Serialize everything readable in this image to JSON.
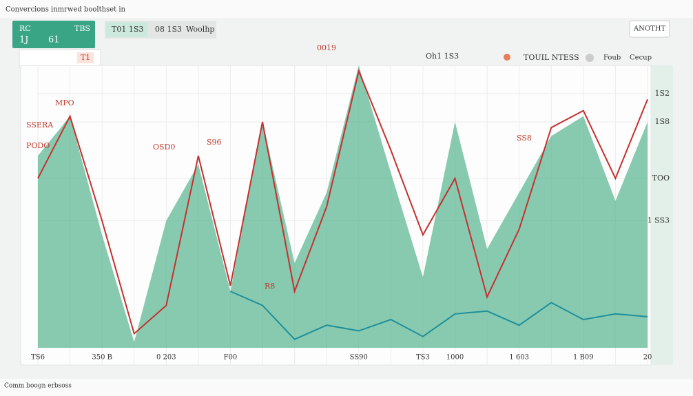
{
  "header": {
    "title": "Convercions inmrwed boolthset in",
    "button": "ANOTHT"
  },
  "panel": {
    "label": "RC",
    "value_a": "1J",
    "value_b": "61",
    "value_c": "TBS"
  },
  "tabs": [
    "T01 1S3",
    "08 1S3",
    "Woolhp"
  ],
  "toolbar": {
    "filter_a": "Oh1 1S3",
    "legend": "TOUIL NTESS",
    "option_a": "Foub",
    "option_b": "Cecup",
    "chip": "T1"
  },
  "annotations": [
    "MPO",
    "SSERA",
    "PODO",
    "OSD0",
    "S96",
    "0019",
    "SS8",
    "R8"
  ],
  "footer": {
    "status": "Comm boogn erbsoss"
  },
  "chart_data": {
    "type": "line",
    "categories": [
      "TS6",
      null,
      "350 B",
      null,
      "0 203",
      null,
      "F00",
      null,
      null,
      null,
      "SS90",
      null,
      "TS3",
      "1000",
      null,
      "1 603",
      null,
      "1 B09",
      null,
      "20"
    ],
    "series": [
      {
        "color": "#5fb894",
        "fill": true,
        "values": [
          68,
          82,
          40,
          2,
          45,
          65,
          20,
          80,
          30,
          55,
          100,
          62,
          25,
          80,
          35,
          55,
          75,
          82,
          52,
          80
        ]
      },
      {
        "color": "#c62f2f",
        "values": [
          60,
          82,
          45,
          5,
          15,
          68,
          22,
          80,
          20,
          50,
          98,
          70,
          40,
          60,
          18,
          42,
          78,
          84,
          60,
          88
        ]
      },
      {
        "color": "#1f8f9a",
        "values": [
          null,
          null,
          null,
          null,
          null,
          null,
          20,
          15,
          3,
          8,
          6,
          10,
          4,
          12,
          13,
          8,
          16,
          10,
          12,
          11
        ]
      }
    ],
    "ylim": [
      0,
      100
    ],
    "yticks": [
      {
        "value": 90,
        "label": "1S2"
      },
      {
        "value": 80,
        "label": "1S8"
      },
      {
        "value": 60,
        "label": "TOO"
      },
      {
        "value": 45,
        "label": "1 SS3"
      }
    ],
    "grid": true
  }
}
